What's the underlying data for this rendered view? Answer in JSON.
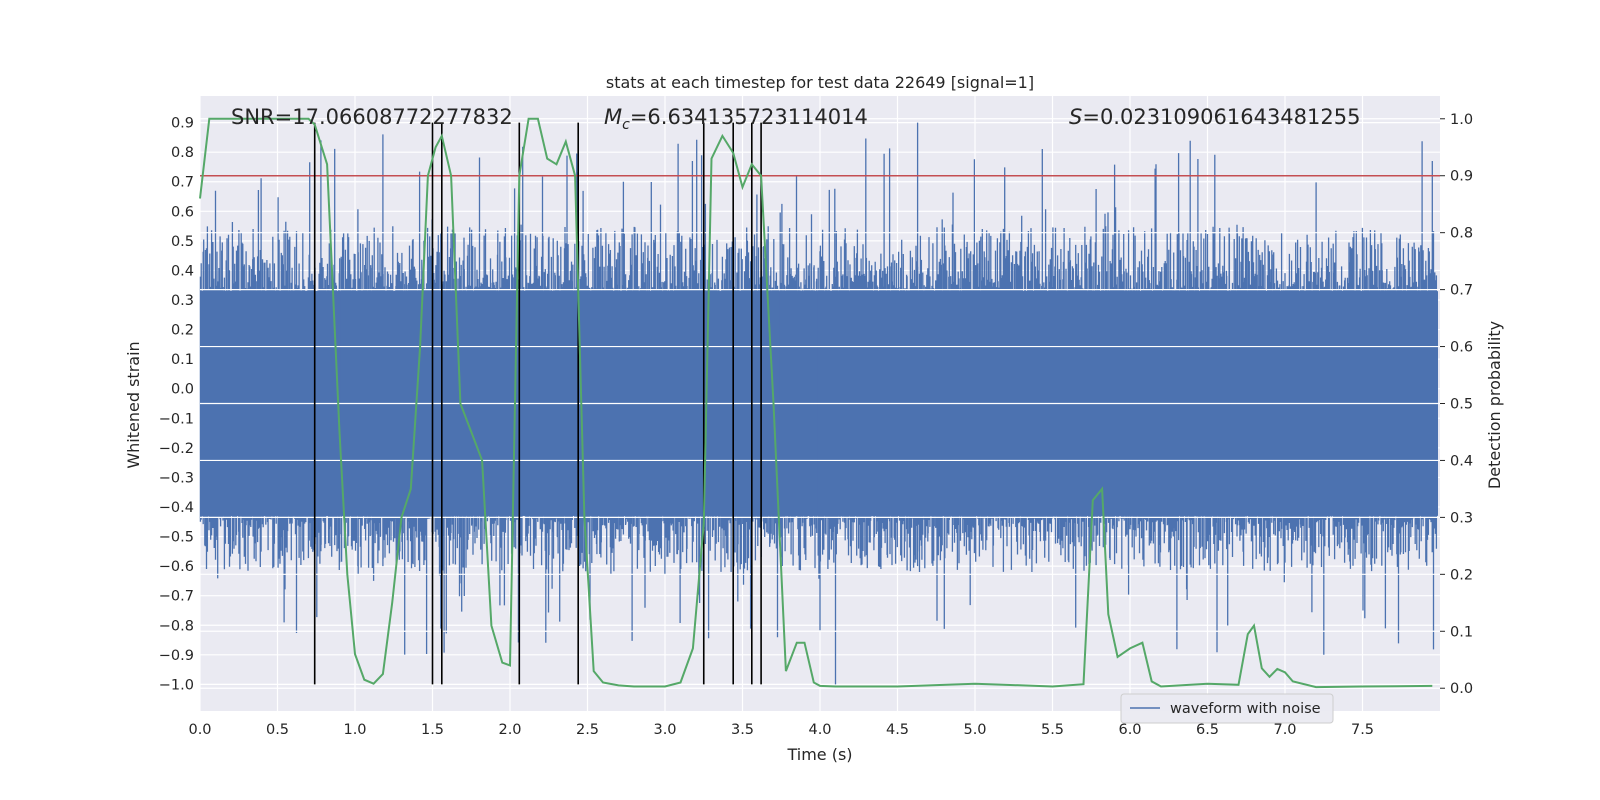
{
  "chart_data": {
    "type": "line",
    "title": "stats at each timestep for test data 22649 [signal=1]",
    "xlabel": "Time (s)",
    "ylabel_left": "Whitened strain",
    "ylabel_right": "Detection probability",
    "xlim": [
      0.0,
      8.0
    ],
    "ylim_left": [
      -1.09,
      0.99
    ],
    "ylim_right": [
      -0.04,
      1.04
    ],
    "x_ticks": [
      "0.0",
      "0.5",
      "1.0",
      "1.5",
      "2.0",
      "2.5",
      "3.0",
      "3.5",
      "4.0",
      "4.5",
      "5.0",
      "5.5",
      "6.0",
      "6.5",
      "7.0",
      "7.5"
    ],
    "x_tick_values": [
      0,
      0.5,
      1,
      1.5,
      2,
      2.5,
      3,
      3.5,
      4,
      4.5,
      5,
      5.5,
      6,
      6.5,
      7,
      7.5
    ],
    "y_left_ticks": [
      "0.9",
      "0.8",
      "0.7",
      "0.6",
      "0.5",
      "0.4",
      "0.3",
      "0.2",
      "0.1",
      "0.0",
      "−0.1",
      "−0.2",
      "−0.3",
      "−0.4",
      "−0.5",
      "−0.6",
      "−0.7",
      "−0.8",
      "−0.9",
      "−1.0"
    ],
    "y_left_tick_values": [
      0.9,
      0.8,
      0.7,
      0.6,
      0.5,
      0.4,
      0.3,
      0.2,
      0.1,
      0.0,
      -0.1,
      -0.2,
      -0.3,
      -0.4,
      -0.5,
      -0.6,
      -0.7,
      -0.8,
      -0.9,
      -1.0
    ],
    "y_right_ticks": [
      "1.0",
      "0.9",
      "0.8",
      "0.7",
      "0.6",
      "0.5",
      "0.4",
      "0.3",
      "0.2",
      "0.1",
      "0.0"
    ],
    "y_right_tick_values": [
      1.0,
      0.9,
      0.8,
      0.7,
      0.6,
      0.5,
      0.4,
      0.3,
      0.2,
      0.1,
      0.0
    ],
    "annotations": {
      "snr": "SNR=17.06608772277832",
      "mc_symbol": "M",
      "mc_sub": "c",
      "mc_value": "=6.634135723114014",
      "s_symbol": "S",
      "s_value": "=0.023109061643481255"
    },
    "threshold": 0.9,
    "vertical_lines_x": [
      0.74,
      1.5,
      1.56,
      2.06,
      2.44,
      3.25,
      3.44,
      3.56,
      3.62
    ],
    "vertical_lines_range": [
      -1.0,
      0.9
    ],
    "waveform": {
      "name": "waveform with noise",
      "x_range": [
        0.0,
        8.0
      ],
      "core_band": [
        -0.43,
        0.33
      ],
      "typical_peak": 0.55,
      "typical_trough": -0.62,
      "max": 0.9,
      "min": -1.0
    },
    "detection_probability": {
      "x": [
        0.0,
        0.06,
        0.12,
        0.25,
        0.5,
        0.7,
        0.74,
        0.82,
        0.9,
        0.95,
        1.0,
        1.06,
        1.12,
        1.18,
        1.24,
        1.3,
        1.36,
        1.42,
        1.47,
        1.52,
        1.56,
        1.62,
        1.68,
        1.75,
        1.82,
        1.88,
        1.95,
        2.0,
        2.06,
        2.12,
        2.18,
        2.24,
        2.3,
        2.36,
        2.42,
        2.48,
        2.54,
        2.6,
        2.7,
        2.8,
        3.0,
        3.1,
        3.18,
        3.25,
        3.3,
        3.37,
        3.44,
        3.5,
        3.56,
        3.62,
        3.7,
        3.78,
        3.85,
        3.9,
        3.96,
        4.0,
        4.1,
        4.5,
        5.0,
        5.5,
        5.7,
        5.76,
        5.82,
        5.86,
        5.92,
        6.0,
        6.08,
        6.14,
        6.2,
        6.5,
        6.7,
        6.76,
        6.8,
        6.85,
        6.9,
        6.95,
        7.0,
        7.05,
        7.2,
        7.5,
        7.95
      ],
      "y": [
        0.86,
        1.0,
        1.0,
        1.0,
        1.0,
        1.0,
        0.99,
        0.92,
        0.45,
        0.2,
        0.06,
        0.015,
        0.008,
        0.025,
        0.15,
        0.3,
        0.35,
        0.6,
        0.9,
        0.95,
        0.97,
        0.9,
        0.5,
        0.45,
        0.4,
        0.11,
        0.045,
        0.04,
        0.9,
        1.0,
        1.0,
        0.93,
        0.92,
        0.96,
        0.9,
        0.3,
        0.03,
        0.01,
        0.005,
        0.003,
        0.003,
        0.01,
        0.07,
        0.29,
        0.93,
        0.97,
        0.94,
        0.88,
        0.92,
        0.9,
        0.5,
        0.03,
        0.08,
        0.08,
        0.01,
        0.004,
        0.003,
        0.003,
        0.008,
        0.003,
        0.007,
        0.33,
        0.35,
        0.13,
        0.055,
        0.07,
        0.08,
        0.012,
        0.003,
        0.008,
        0.006,
        0.095,
        0.11,
        0.035,
        0.02,
        0.034,
        0.028,
        0.012,
        0.002,
        0.003,
        0.004
      ]
    },
    "legend": [
      "waveform with noise"
    ],
    "legend_position": "lower-right",
    "colors": {
      "background": "#eaeaf2",
      "grid": "#ffffff",
      "waveform": "#4c72b0",
      "probability": "#55a868",
      "threshold": "#c44e52",
      "vlines": "#000000",
      "text": "#262626"
    }
  }
}
